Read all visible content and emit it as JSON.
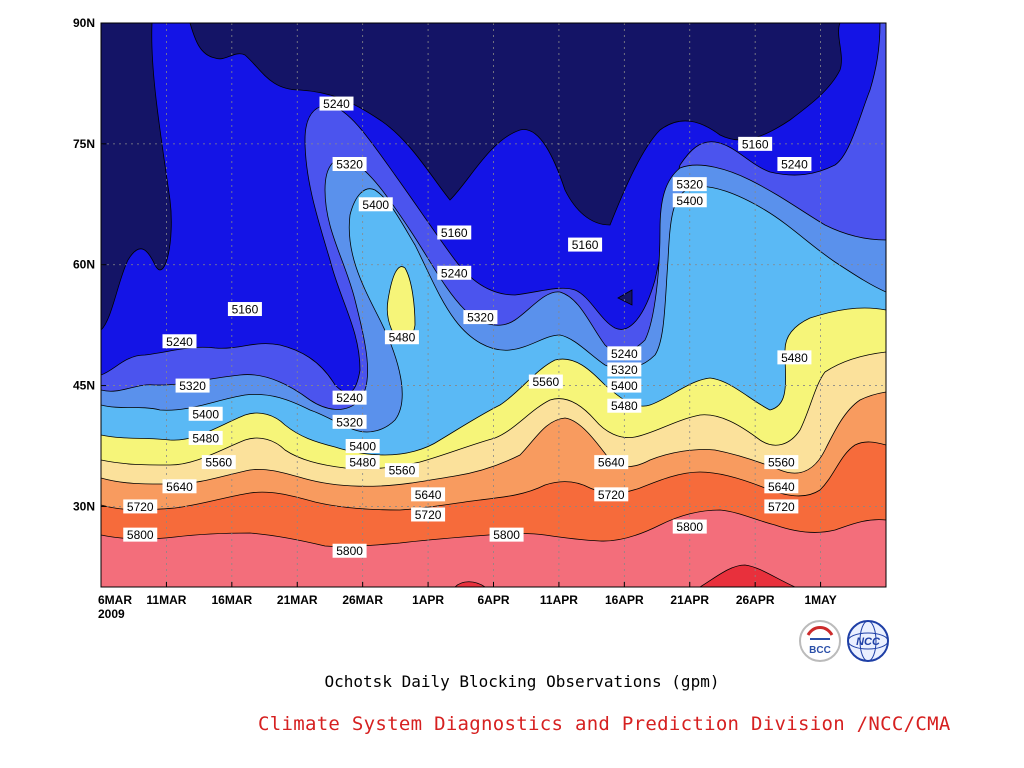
{
  "chart_data": {
    "type": "contour",
    "title": "Ochotsk Daily Blocking Observations (gpm)",
    "footer": "Climate System Diagnostics and Prediction Division /NCC/CMA",
    "x_ticks": [
      "6MAR",
      "11MAR",
      "16MAR",
      "21MAR",
      "26MAR",
      "1APR",
      "6APR",
      "11APR",
      "16APR",
      "21APR",
      "26APR",
      "1MAY"
    ],
    "x_year_label": "2009",
    "y_ticks": [
      "30N",
      "45N",
      "60N",
      "75N",
      "90N"
    ],
    "y_tick_values": [
      30,
      45,
      60,
      75,
      90
    ],
    "xlim": [
      "2009-03-06",
      "2009-05-05"
    ],
    "ylim": [
      20,
      90
    ],
    "grid": true,
    "levels": [
      5080,
      5160,
      5240,
      5320,
      5400,
      5480,
      5560,
      5640,
      5720,
      5800,
      5880
    ],
    "level_colors": [
      "#141466",
      "#1414e6",
      "#4b54ee",
      "#5a91ec",
      "#5ab9f5",
      "#f6f579",
      "#fbe19b",
      "#f89b5f",
      "#f66b3b",
      "#f36e7b",
      "#e8303c"
    ],
    "contour_labels": [
      {
        "value": "5240",
        "date": "2009-03-24",
        "lat": 80
      },
      {
        "value": "5320",
        "date": "2009-03-25",
        "lat": 72.5
      },
      {
        "value": "5400",
        "date": "2009-03-27",
        "lat": 67.5
      },
      {
        "value": "5480",
        "date": "2009-03-29",
        "lat": 51
      },
      {
        "value": "5160",
        "date": "2009-04-02",
        "lat": 64
      },
      {
        "value": "5240",
        "date": "2009-04-02",
        "lat": 59
      },
      {
        "value": "5320",
        "date": "2009-04-04",
        "lat": 53.5
      },
      {
        "value": "5160",
        "date": "2009-04-12",
        "lat": 62.5
      },
      {
        "value": "5160",
        "date": "2009-03-17",
        "lat": 54.5
      },
      {
        "value": "5240",
        "date": "2009-03-12",
        "lat": 50.5
      },
      {
        "value": "5320",
        "date": "2009-03-13",
        "lat": 45
      },
      {
        "value": "5400",
        "date": "2009-03-14",
        "lat": 41.5
      },
      {
        "value": "5480",
        "date": "2009-03-14",
        "lat": 38.5
      },
      {
        "value": "5560",
        "date": "2009-03-15",
        "lat": 35.5
      },
      {
        "value": "5640",
        "date": "2009-03-12",
        "lat": 32.5
      },
      {
        "value": "5720",
        "date": "2009-03-09",
        "lat": 30
      },
      {
        "value": "5800",
        "date": "2009-03-09",
        "lat": 26.5
      },
      {
        "value": "5240",
        "date": "2009-03-25",
        "lat": 43.5
      },
      {
        "value": "5320",
        "date": "2009-03-25",
        "lat": 40.5
      },
      {
        "value": "5400",
        "date": "2009-03-26",
        "lat": 37.5
      },
      {
        "value": "5480",
        "date": "2009-03-26",
        "lat": 35.5
      },
      {
        "value": "5560",
        "date": "2009-03-29",
        "lat": 34.5
      },
      {
        "value": "5640",
        "date": "2009-03-31",
        "lat": 31.5
      },
      {
        "value": "5720",
        "date": "2009-03-31",
        "lat": 29
      },
      {
        "value": "5800",
        "date": "2009-03-25",
        "lat": 24.5
      },
      {
        "value": "5800",
        "date": "2009-04-06",
        "lat": 26.5
      },
      {
        "value": "5560",
        "date": "2009-04-09",
        "lat": 45.5
      },
      {
        "value": "5240",
        "date": "2009-04-15",
        "lat": 49
      },
      {
        "value": "5320",
        "date": "2009-04-15",
        "lat": 47
      },
      {
        "value": "5400",
        "date": "2009-04-15",
        "lat": 45
      },
      {
        "value": "5480",
        "date": "2009-04-15",
        "lat": 42.5
      },
      {
        "value": "5640",
        "date": "2009-04-14",
        "lat": 35.5
      },
      {
        "value": "5720",
        "date": "2009-04-14",
        "lat": 31.5
      },
      {
        "value": "5320",
        "date": "2009-04-20",
        "lat": 70
      },
      {
        "value": "5400",
        "date": "2009-04-20",
        "lat": 68
      },
      {
        "value": "5160",
        "date": "2009-04-25",
        "lat": 75
      },
      {
        "value": "5240",
        "date": "2009-04-28",
        "lat": 72.5
      },
      {
        "value": "5480",
        "date": "2009-04-28",
        "lat": 48.5
      },
      {
        "value": "5800",
        "date": "2009-04-20",
        "lat": 27.5
      },
      {
        "value": "5560",
        "date": "2009-04-27",
        "lat": 35.5
      },
      {
        "value": "5640",
        "date": "2009-04-27",
        "lat": 32.5
      },
      {
        "value": "5720",
        "date": "2009-04-27",
        "lat": 30
      }
    ]
  },
  "logos": {
    "bcc_text": "BCC",
    "ncc_text": "NCC"
  }
}
